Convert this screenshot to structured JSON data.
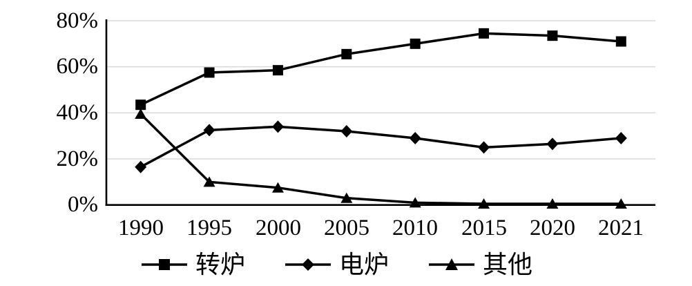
{
  "chart_data": {
    "type": "line",
    "title": "",
    "xlabel": "",
    "ylabel": "",
    "unit": "%",
    "categories": [
      "1990",
      "1995",
      "2000",
      "2005",
      "2010",
      "2015",
      "2020",
      "2021"
    ],
    "y_tick_labels": [
      "80%",
      "60%",
      "40%",
      "20%",
      "0%"
    ],
    "ylim": [
      0,
      80
    ],
    "y_tick_step": 20,
    "grid": "horizontal",
    "legend_position": "bottom",
    "line_color": "#000000",
    "marker_color": "#000000",
    "gridline_color": "#d9d9d9",
    "background_color": "#ffffff",
    "series": [
      {
        "name": "转炉",
        "marker": "square",
        "values": [
          43.5,
          57.5,
          58.5,
          65.5,
          70,
          74.5,
          73.5,
          71
        ]
      },
      {
        "name": "电炉",
        "marker": "diamond",
        "values": [
          16.5,
          32.5,
          34,
          32,
          29,
          25,
          26.5,
          29
        ]
      },
      {
        "name": "其他",
        "marker": "triangle",
        "values": [
          39.5,
          10,
          7.5,
          3,
          1,
          0.5,
          0.5,
          0.5
        ]
      }
    ]
  }
}
